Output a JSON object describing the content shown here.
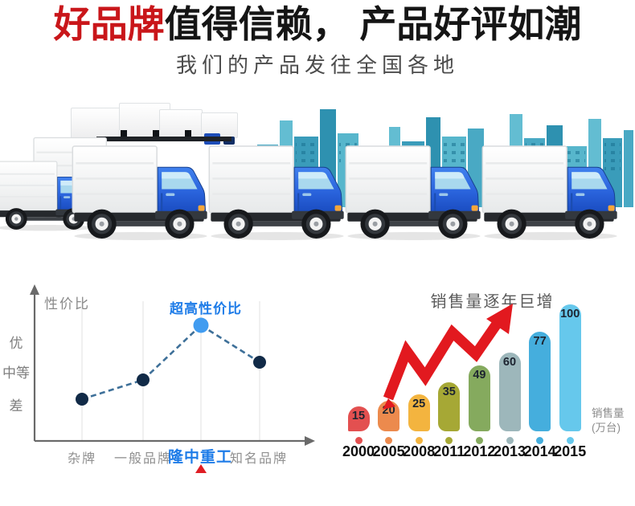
{
  "header": {
    "title_highlight": "好品牌",
    "title_rest": "值得信赖， 产品好评如潮",
    "subtitle": "我们的产品发往全国各地"
  },
  "illustration": {
    "icons": [
      "delivery-truck-icon",
      "city-skyline-icon",
      "cargo-crate-icon"
    ]
  },
  "colors": {
    "title_red": "#c9161a",
    "annotation_blue": "#1e7ce8",
    "arrow_red": "#e2191f",
    "truck_cab_blue": "#2a63dc",
    "skyline_teal": "#49a9c4"
  },
  "chart_data": [
    {
      "type": "line",
      "title": "性价比",
      "annotation": "超高性价比",
      "annotation_icon": "red-triangle-marker-icon",
      "categories": [
        "杂牌",
        "一般品牌",
        "隆中重工",
        "知名品牌"
      ],
      "highlight_index": 2,
      "y_tick_labels": [
        "优",
        "中等",
        "差"
      ],
      "y_scale_note": "qualitative: 差=1, 中等=2, 优=3",
      "values": [
        1.3,
        1.9,
        3.6,
        2.45
      ],
      "line_style": "dashed",
      "line_color": "#3e7099",
      "point_color": "#112a47",
      "highlight_point_color": "#419cf0",
      "marker": "▲",
      "marker_color": "#df1d24",
      "grid": true,
      "legend": "none"
    },
    {
      "type": "bar",
      "title": "销售量逐年巨增",
      "categories": [
        "2000",
        "2005",
        "2008",
        "2011",
        "2012",
        "2013",
        "2014",
        "2015"
      ],
      "values": [
        15,
        20,
        25,
        35,
        49,
        60,
        77,
        100
      ],
      "ylabel_line1": "销售量",
      "ylabel_line2": "(万台)",
      "ylim": [
        0,
        100
      ],
      "bar_colors": [
        "#e35050",
        "#ec8a4d",
        "#f3b43f",
        "#a6a835",
        "#85aa5e",
        "#9db7bb",
        "#45aedd",
        "#66c8ec"
      ],
      "annotation_icon": "rising-arrow-icon",
      "grid": false,
      "legend": "none"
    }
  ]
}
